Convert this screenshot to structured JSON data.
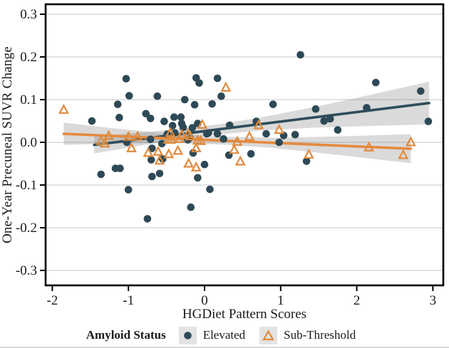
{
  "axes": {
    "x": {
      "label": "HGDiet Pattern Scores"
    },
    "y": {
      "label": "One-Year Precuneal SUVR Change"
    }
  },
  "legend": {
    "title": "Amyloid Status",
    "items": [
      {
        "label": "Elevated",
        "marker": "filled-circle",
        "color": "#2e4956"
      },
      {
        "label": "Sub-Threshold",
        "marker": "open-triangle",
        "color": "#df8a3d"
      }
    ]
  },
  "colors": {
    "elevated": "#2e4956",
    "elevated_line": "#2e4d5b",
    "subthreshold": "#df8a3d",
    "subthreshold_line": "#e58a3e",
    "ci_band": "rgba(122,122,122,0.28)",
    "gridline": "#d9d9d9",
    "axis": "#000000",
    "legend_key_bg": "#e3e3e3"
  },
  "chart_data": {
    "type": "scatter",
    "title": "",
    "xlabel": "HGDiet Pattern Scores",
    "ylabel": "One-Year Precuneal SUVR Change",
    "xlim": [
      -2.09,
      3.14
    ],
    "ylim": [
      -0.333,
      0.322
    ],
    "xticks": [
      "-2",
      "-1",
      "0",
      "1",
      "2",
      "3"
    ],
    "yticks": [
      "0.3",
      "0.2",
      "0.1",
      "0.0",
      "-0.1",
      "-0.2",
      "-0.3"
    ],
    "grid": "horizontal-only",
    "legend_position": "bottom",
    "series": [
      {
        "name": "Elevated",
        "marker": "circle",
        "points": [
          [
            -1.48,
            0.05
          ],
          [
            -1.36,
            -0.075
          ],
          [
            -1.17,
            -0.061
          ],
          [
            -1.11,
            -0.061
          ],
          [
            -1.14,
            0.089
          ],
          [
            -1.12,
            0.058
          ],
          [
            -1.03,
            0.149
          ],
          [
            -0.99,
            0.109
          ],
          [
            -1.02,
            0.0
          ],
          [
            -1.0,
            -0.111
          ],
          [
            -0.77,
            0.067
          ],
          [
            -0.75,
            -0.179
          ],
          [
            -0.71,
            0.056
          ],
          [
            -0.71,
            0.007
          ],
          [
            -0.7,
            -0.041
          ],
          [
            -0.69,
            -0.014
          ],
          [
            -0.69,
            -0.08
          ],
          [
            -0.62,
            0.108
          ],
          [
            -0.59,
            -0.073
          ],
          [
            -0.56,
            -0.003
          ],
          [
            -0.55,
            -0.039
          ],
          [
            -0.53,
            0.049
          ],
          [
            -0.49,
            0.019
          ],
          [
            -0.42,
            0.039
          ],
          [
            -0.4,
            0.059
          ],
          [
            -0.39,
            0.022
          ],
          [
            -0.31,
            0.059
          ],
          [
            -0.3,
            0.044
          ],
          [
            -0.28,
            0.035
          ],
          [
            -0.26,
            0.1
          ],
          [
            -0.22,
            0.006
          ],
          [
            -0.19,
            0.011
          ],
          [
            -0.18,
            -0.152
          ],
          [
            -0.16,
            0.034
          ],
          [
            -0.15,
            -0.025
          ],
          [
            -0.13,
            0.088
          ],
          [
            -0.11,
            0.151
          ],
          [
            -0.09,
            0.044
          ],
          [
            -0.09,
            -0.083
          ],
          [
            -0.07,
            0.139
          ],
          [
            0.0,
            -0.052
          ],
          [
            0.03,
            0.02
          ],
          [
            0.05,
            0.022
          ],
          [
            0.07,
            -0.11
          ],
          [
            0.1,
            0.09
          ],
          [
            0.17,
            0.15
          ],
          [
            0.17,
            0.02
          ],
          [
            0.22,
            0.108
          ],
          [
            0.25,
            0.008
          ],
          [
            0.32,
            -0.03
          ],
          [
            0.33,
            0.04
          ],
          [
            0.61,
            -0.027
          ],
          [
            0.68,
            0.049
          ],
          [
            0.81,
            0.02
          ],
          [
            0.9,
            0.089
          ],
          [
            0.98,
            0.0
          ],
          [
            1.04,
            0.016
          ],
          [
            1.19,
            0.018
          ],
          [
            1.26,
            0.205
          ],
          [
            1.34,
            -0.044
          ],
          [
            1.46,
            0.078
          ],
          [
            1.57,
            0.05
          ],
          [
            1.65,
            0.055
          ],
          [
            1.75,
            0.029
          ],
          [
            2.13,
            0.081
          ],
          [
            2.25,
            0.14
          ],
          [
            2.84,
            0.12
          ],
          [
            2.94,
            0.049
          ]
        ],
        "trend_line": {
          "x1": -1.45,
          "y1": -0.006,
          "x2": 2.95,
          "y2": 0.092
        },
        "ci_band": {
          "x": [
            -1.45,
            -0.8,
            -0.2,
            0.2,
            0.8,
            1.5,
            2.2,
            2.95
          ],
          "halfwidth": [
            0.02,
            0.015,
            0.012,
            0.012,
            0.016,
            0.025,
            0.037,
            0.05
          ]
        }
      },
      {
        "name": "Sub-Threshold",
        "marker": "triangle-open",
        "points": [
          [
            -1.85,
            0.076
          ],
          [
            -1.36,
            0.003
          ],
          [
            -1.31,
            -0.003
          ],
          [
            -1.26,
            0.015
          ],
          [
            -1.0,
            0.013
          ],
          [
            -0.96,
            -0.014
          ],
          [
            -0.88,
            0.013
          ],
          [
            -0.74,
            -0.025
          ],
          [
            -0.61,
            -0.022
          ],
          [
            -0.59,
            -0.043
          ],
          [
            -0.48,
            0.006
          ],
          [
            -0.47,
            -0.028
          ],
          [
            -0.45,
            0.022
          ],
          [
            -0.44,
            0.006
          ],
          [
            -0.35,
            -0.02
          ],
          [
            -0.33,
            0.008
          ],
          [
            -0.3,
            0.017
          ],
          [
            -0.22,
            0.019
          ],
          [
            -0.21,
            -0.05
          ],
          [
            -0.19,
            0.014
          ],
          [
            -0.11,
            -0.014
          ],
          [
            -0.11,
            -0.059
          ],
          [
            -0.09,
            0.004
          ],
          [
            -0.05,
            0.003
          ],
          [
            -0.03,
            0.041
          ],
          [
            0.28,
            0.128
          ],
          [
            0.39,
            -0.018
          ],
          [
            0.43,
            0.001
          ],
          [
            0.47,
            -0.045
          ],
          [
            0.59,
            0.013
          ],
          [
            0.71,
            0.04
          ],
          [
            0.98,
            0.029
          ],
          [
            1.37,
            -0.029
          ],
          [
            2.16,
            -0.012
          ],
          [
            2.61,
            -0.03
          ],
          [
            2.71,
            0.0
          ]
        ],
        "trend_line": {
          "x1": -1.85,
          "y1": 0.02,
          "x2": 2.71,
          "y2": -0.015
        },
        "ci_band": {
          "x": [
            -1.85,
            -1.2,
            -0.5,
            0.2,
            0.9,
            1.7,
            2.71
          ],
          "halfwidth": [
            0.026,
            0.018,
            0.011,
            0.009,
            0.012,
            0.021,
            0.034
          ]
        }
      }
    ]
  }
}
